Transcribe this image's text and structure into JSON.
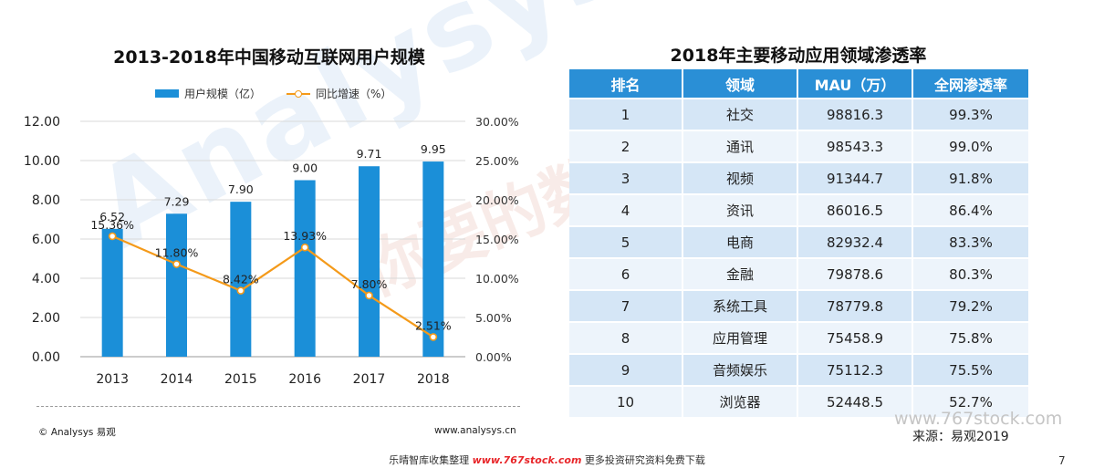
{
  "watermarks": {
    "brand": "Analysys 易观",
    "slogan": "你要的数据能力"
  },
  "chart_data": {
    "type": "bar",
    "title": "2013-2018年中国移动互联网用户规模",
    "categories": [
      "2013",
      "2014",
      "2015",
      "2016",
      "2017",
      "2018"
    ],
    "series": [
      {
        "name": "用户规模（亿）",
        "type": "bar",
        "axis": "left",
        "values": [
          6.52,
          7.29,
          7.9,
          9.0,
          9.71,
          9.95
        ],
        "labels": [
          "6.52",
          "7.29",
          "7.90",
          "9.00",
          "9.71",
          "9.95"
        ]
      },
      {
        "name": "同比增速（%）",
        "type": "line",
        "axis": "right",
        "values": [
          15.36,
          11.8,
          8.42,
          13.93,
          7.8,
          2.51
        ],
        "labels": [
          "15.36%",
          "11.80%",
          "8.42%",
          "13.93%",
          "7.80%",
          "2.51%"
        ]
      }
    ],
    "y_left": {
      "ylim": [
        0,
        12
      ],
      "ticks": [
        "0.00",
        "2.00",
        "4.00",
        "6.00",
        "8.00",
        "10.00",
        "12.00"
      ]
    },
    "y_right": {
      "ylim": [
        0,
        30
      ],
      "ticks": [
        "0.00%",
        "5.00%",
        "10.00%",
        "15.00%",
        "20.00%",
        "25.00%",
        "30.00%"
      ]
    },
    "legend_position": "top",
    "grid": true,
    "colors": {
      "bar": "#1b8fd8",
      "line": "#f49a1a"
    }
  },
  "chart_footer": {
    "copyright": "© Analysys 易观",
    "website": "www.analysys.cn"
  },
  "table": {
    "title": "2018年主要移动应用领域渗透率",
    "headers": [
      "排名",
      "领域",
      "MAU（万）",
      "全网渗透率"
    ],
    "rows": [
      [
        "1",
        "社交",
        "98816.3",
        "99.3%"
      ],
      [
        "2",
        "通讯",
        "98543.3",
        "99.0%"
      ],
      [
        "3",
        "视频",
        "91344.7",
        "91.8%"
      ],
      [
        "4",
        "资讯",
        "86016.5",
        "86.4%"
      ],
      [
        "5",
        "电商",
        "82932.4",
        "83.3%"
      ],
      [
        "6",
        "金融",
        "79878.6",
        "80.3%"
      ],
      [
        "7",
        "系统工具",
        "78779.8",
        "79.2%"
      ],
      [
        "8",
        "应用管理",
        "75458.9",
        "75.8%"
      ],
      [
        "9",
        "音频娱乐",
        "75112.3",
        "75.5%"
      ],
      [
        "10",
        "浏览器",
        "52448.5",
        "52.7%"
      ]
    ]
  },
  "source_watermark": "www.767stock.com",
  "source": "来源：易观2019",
  "bottom_banner": {
    "prefix": "乐晴智库收集整理",
    "site": "www.767stock.com",
    "suffix": "更多投资研究资料免费下载"
  },
  "page_number": "7"
}
